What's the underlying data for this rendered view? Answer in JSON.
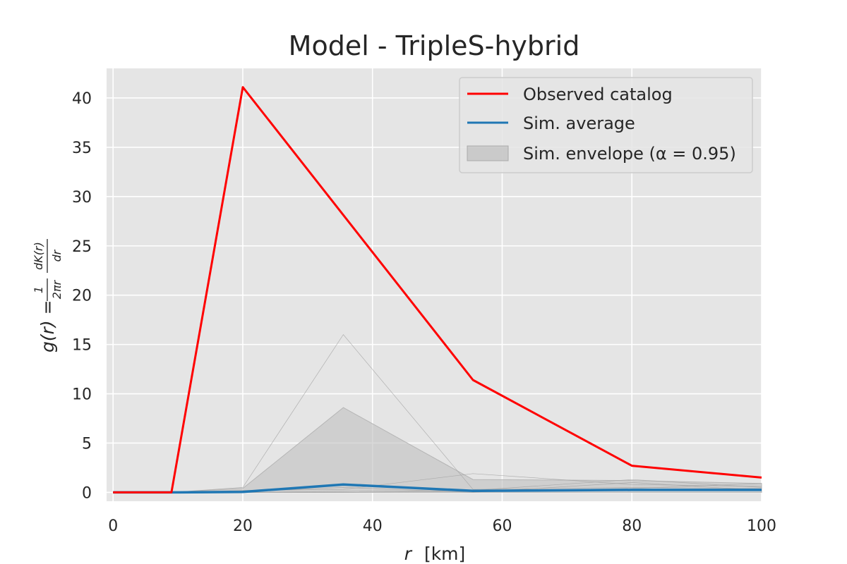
{
  "chart_data": {
    "type": "line",
    "title": "Model - TripleS-hybrid",
    "xlabel_var": "r",
    "xlabel_unit": "[km]",
    "ylabel": {
      "lhs": "g(r) = ",
      "frac1_num": "1",
      "frac1_den": "2πr",
      "frac2_num": "dK(r)",
      "frac2_den": "dr"
    },
    "xlim": [
      -1,
      100
    ],
    "ylim": [
      -0.9,
      43
    ],
    "xticks": [
      0,
      20,
      40,
      60,
      80,
      100
    ],
    "yticks": [
      0,
      5,
      10,
      15,
      20,
      25,
      30,
      35,
      40
    ],
    "grid": true,
    "legend_position": "top-right",
    "series": [
      {
        "name": "Observed catalog",
        "kind": "line",
        "color": "#ff0000",
        "points": [
          [
            0,
            0
          ],
          [
            9,
            0
          ],
          [
            20,
            41.1
          ],
          [
            55.5,
            11.4
          ],
          [
            80,
            2.7
          ],
          [
            100,
            1.5
          ]
        ]
      },
      {
        "name": "Sim. average",
        "kind": "line",
        "color": "#1f77b4",
        "points": [
          [
            0,
            0
          ],
          [
            9,
            0
          ],
          [
            20,
            0.05
          ],
          [
            35.5,
            0.8
          ],
          [
            55.5,
            0.15
          ],
          [
            80,
            0.25
          ],
          [
            100,
            0.25
          ]
        ]
      },
      {
        "name": "Sim. envelope (α = 0.95)",
        "kind": "band",
        "color": "#bfbfbf",
        "upper": [
          [
            0,
            0
          ],
          [
            9,
            0
          ],
          [
            20,
            0.4
          ],
          [
            35.5,
            8.6
          ],
          [
            55.5,
            1.3
          ],
          [
            80,
            1.2
          ],
          [
            100,
            0.9
          ]
        ],
        "lower": [
          [
            0,
            0
          ],
          [
            9,
            0
          ],
          [
            20,
            0
          ],
          [
            35.5,
            0
          ],
          [
            55.5,
            0
          ],
          [
            80,
            0
          ],
          [
            100,
            0
          ]
        ]
      }
    ],
    "simulation_traces": [
      [
        [
          0,
          0
        ],
        [
          9,
          0
        ],
        [
          20,
          0.5
        ],
        [
          35.5,
          16.0
        ],
        [
          55.5,
          0.3
        ],
        [
          80,
          0.5
        ],
        [
          100,
          0.4
        ]
      ],
      [
        [
          0,
          0
        ],
        [
          9,
          0
        ],
        [
          20,
          0.2
        ],
        [
          35.5,
          0.3
        ],
        [
          55.5,
          1.9
        ],
        [
          80,
          0.8
        ],
        [
          100,
          0.6
        ]
      ],
      [
        [
          0,
          0
        ],
        [
          9,
          0
        ],
        [
          20,
          0.0
        ],
        [
          35.5,
          0.1
        ],
        [
          55.5,
          0.2
        ],
        [
          80,
          1.3
        ],
        [
          100,
          0.5
        ]
      ],
      [
        [
          0,
          0
        ],
        [
          9,
          0
        ],
        [
          20,
          0.0
        ],
        [
          35.5,
          0.0
        ],
        [
          55.5,
          0.1
        ],
        [
          80,
          0.4
        ],
        [
          100,
          0.9
        ]
      ],
      [
        [
          0,
          0
        ],
        [
          9,
          0
        ],
        [
          20,
          0.1
        ],
        [
          35.5,
          0.5
        ],
        [
          55.5,
          0.0
        ],
        [
          80,
          1.0
        ],
        [
          100,
          0.2
        ]
      ]
    ],
    "colors": {
      "plot_background": "#e5e5e5",
      "grid": "#ffffff",
      "text": "#262626",
      "trace": "#9a9a9a"
    }
  }
}
